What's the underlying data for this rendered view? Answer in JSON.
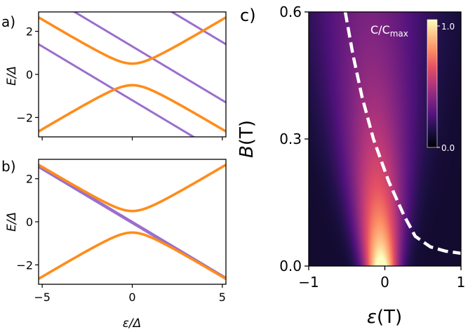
{
  "chart_data": [
    {
      "panel_label": "a)",
      "type": "line",
      "xlabel": "ε/Δ",
      "ylabel": "E/Δ",
      "xlim": [
        -5.2,
        5.2
      ],
      "ylim": [
        -2.9,
        2.9
      ],
      "xticks": [
        -5,
        0,
        5
      ],
      "yticks": [
        -2,
        0,
        2
      ],
      "x_tick_labels": [
        "",
        "",
        ""
      ],
      "y_tick_labels": [
        "−2",
        "0",
        "2"
      ],
      "series": [
        {
          "name": "hybridized upper",
          "color": "#ff8c1a",
          "formula": "sqrt(x^2/4+0.25)",
          "x_range": [
            -5.2,
            5.2
          ]
        },
        {
          "name": "hybridized lower",
          "color": "#ff8c1a",
          "formula": "-sqrt(x^2/4+0.25)",
          "x_range": [
            -5.2,
            5.2
          ]
        },
        {
          "name": "linear 1",
          "color": "#9b6fcc",
          "slope": -0.5,
          "intercept": 4.0,
          "x_range": [
            -5.2,
            5.2
          ]
        },
        {
          "name": "linear 2",
          "color": "#9b6fcc",
          "slope": -0.5,
          "intercept": 1.3,
          "x_range": [
            -5.2,
            5.2
          ]
        },
        {
          "name": "linear 3",
          "color": "#9b6fcc",
          "slope": -0.5,
          "intercept": -1.2,
          "x_range": [
            -5.2,
            5.2
          ]
        }
      ]
    },
    {
      "panel_label": "b)",
      "type": "line",
      "xlabel": "ε/Δ",
      "ylabel": "E/Δ",
      "xlim": [
        -5.2,
        5.2
      ],
      "ylim": [
        -2.9,
        2.9
      ],
      "xticks": [
        -5,
        0,
        5
      ],
      "yticks": [
        -2,
        0,
        2
      ],
      "x_tick_labels": [
        "−5",
        "0",
        "5"
      ],
      "y_tick_labels": [
        "−2",
        "0",
        "2"
      ],
      "series": [
        {
          "name": "hybridized upper",
          "color": "#ff8c1a",
          "formula": "sqrt(x^2/4+0.25)",
          "x_range": [
            -5.2,
            5.2
          ]
        },
        {
          "name": "hybridized lower",
          "color": "#ff8c1a",
          "formula": "-sqrt(x^2/4+0.25)",
          "x_range": [
            -5.2,
            5.2
          ]
        },
        {
          "name": "linear 1",
          "color": "#9b6fcc",
          "slope": -0.5,
          "intercept": 0.0,
          "x_range": [
            -5.2,
            5.2
          ]
        },
        {
          "name": "linear 2",
          "color": "#9b6fcc",
          "slope": -0.5,
          "intercept": -0.06,
          "x_range": [
            -5.2,
            5.2
          ]
        }
      ]
    },
    {
      "panel_label": "c)",
      "type": "heatmap",
      "xlabel": "ε(T)",
      "ylabel": "B(T)",
      "xlim": [
        -1,
        1
      ],
      "ylim": [
        0,
        0.6
      ],
      "xticks": [
        -1,
        0,
        1
      ],
      "yticks": [
        0.0,
        0.3,
        0.6
      ],
      "x_tick_labels": [
        "−1",
        "0",
        "1"
      ],
      "y_tick_labels": [
        "0.0",
        "0.3",
        "0.6"
      ],
      "colorbar": {
        "label_main": "C/C",
        "label_sub": "max",
        "min": 0.0,
        "max": 1.0,
        "tick_labels": [
          "0.0",
          "1.0"
        ],
        "colormap": "magma"
      },
      "peak": {
        "x": -0.05,
        "y": 0.0
      },
      "dashed_curve": {
        "color": "#ffffff",
        "points": [
          [
            -0.52,
            0.6
          ],
          [
            -0.42,
            0.5
          ],
          [
            -0.3,
            0.4
          ],
          [
            -0.15,
            0.3
          ],
          [
            0.05,
            0.2
          ],
          [
            0.25,
            0.12
          ],
          [
            0.4,
            0.07
          ],
          [
            0.6,
            0.045
          ],
          [
            0.8,
            0.035
          ],
          [
            1.0,
            0.03
          ]
        ]
      }
    }
  ]
}
